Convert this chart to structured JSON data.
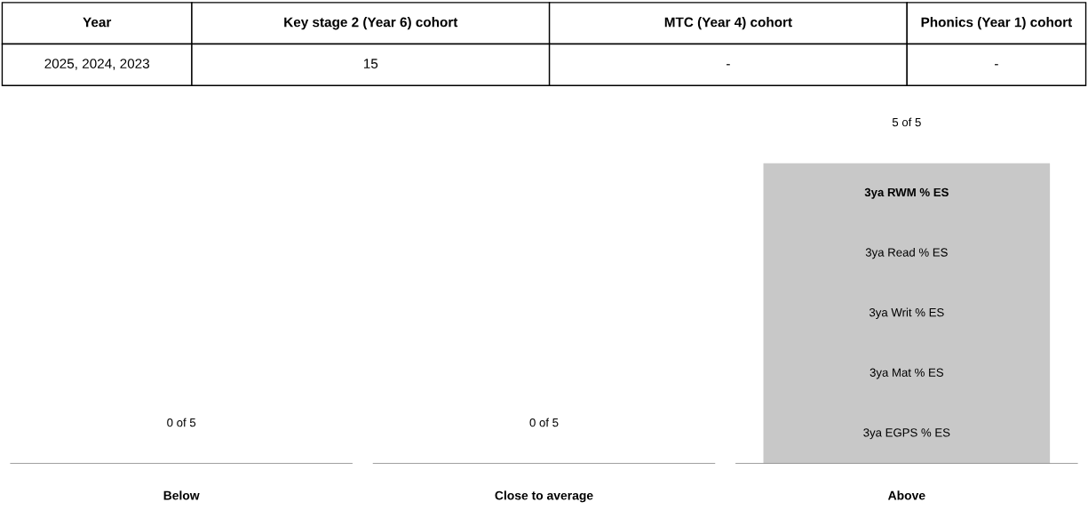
{
  "chart_data": [
    {
      "type": "other",
      "categories": [
        "Year",
        "Key stage 2 (Year 6) cohort",
        "MTC (Year 4) cohort",
        "Phonics (Year 1) cohort"
      ],
      "annotations": [
        "2025, 2024, 2023",
        "15",
        "-",
        "-"
      ]
    },
    {
      "type": "bar",
      "categories": [
        "Below",
        "Close to average",
        "Above"
      ],
      "values": [
        0,
        0,
        5
      ],
      "color": "#c8c8c8",
      "value_labels": [
        "0 of 5",
        "0 of 5",
        "5 of 5"
      ],
      "annotations": [
        "3ya RWM % ES",
        "3ya Read % ES",
        "3ya Writ % ES",
        "3ya Mat % ES",
        "3ya EGPS % ES"
      ]
    }
  ]
}
